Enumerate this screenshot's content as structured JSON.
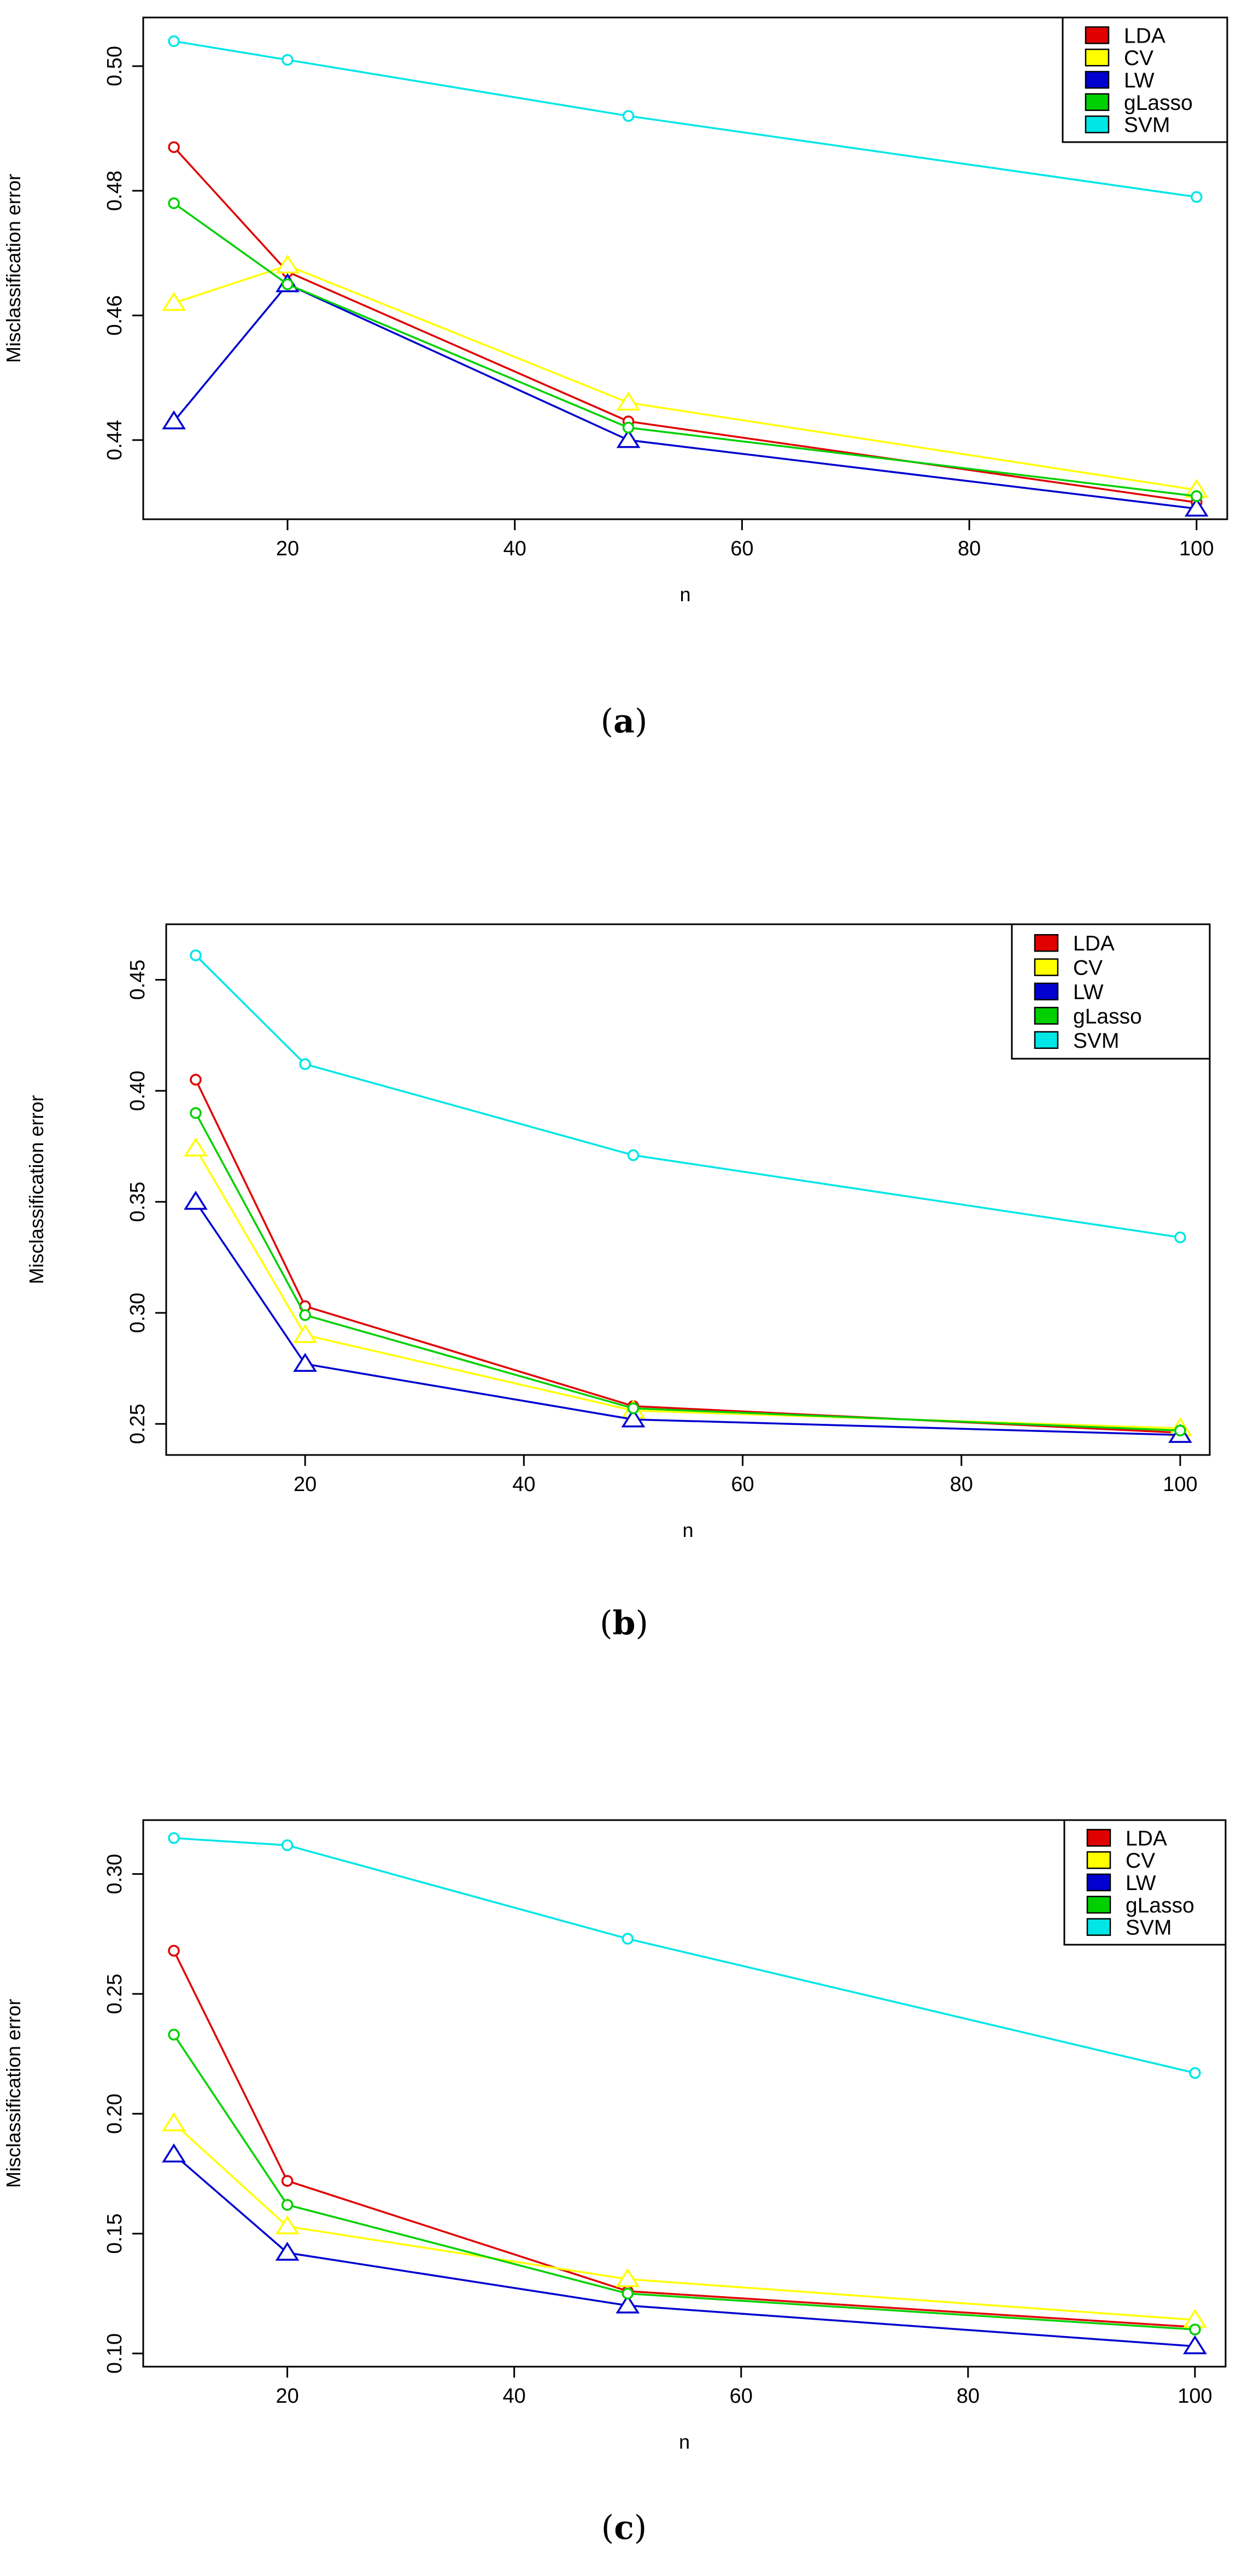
{
  "chart_data": [
    {
      "type": "line",
      "panel": "a",
      "title": "",
      "xlabel": "n",
      "ylabel": "Misclassification error",
      "x": [
        10,
        20,
        50,
        100
      ],
      "xticks": [
        "20",
        "40",
        "60",
        "80",
        "100"
      ],
      "xtick_values": [
        20,
        40,
        60,
        80,
        100
      ],
      "yticks": [
        "0.44",
        "0.46",
        "0.48",
        "0.50"
      ],
      "ytick_values": [
        0.44,
        0.46,
        0.48,
        0.5
      ],
      "xlim": [
        7.3,
        102.7
      ],
      "ylim": [
        0.4273,
        0.5078
      ],
      "legend_position": "top-right",
      "series": [
        {
          "name": "LDA",
          "color": "#e00000",
          "marker": "circle",
          "values": [
            0.487,
            0.467,
            0.443,
            0.43
          ]
        },
        {
          "name": "CV",
          "color": "#ffff00",
          "marker": "triangle",
          "values": [
            0.462,
            0.468,
            0.446,
            0.432
          ]
        },
        {
          "name": "LW",
          "color": "#0000d0",
          "marker": "triangle",
          "values": [
            0.443,
            0.465,
            0.44,
            0.429
          ]
        },
        {
          "name": "gLasso",
          "color": "#00d000",
          "marker": "circle",
          "values": [
            0.478,
            0.465,
            0.442,
            0.431
          ]
        },
        {
          "name": "SVM",
          "color": "#00e6e6",
          "marker": "circle",
          "values": [
            0.504,
            0.501,
            0.492,
            0.479
          ]
        }
      ]
    },
    {
      "type": "line",
      "panel": "b",
      "title": "",
      "xlabel": "n",
      "ylabel": "Misclassification error",
      "x": [
        10,
        20,
        50,
        100
      ],
      "xticks": [
        "20",
        "40",
        "60",
        "80",
        "100"
      ],
      "xtick_values": [
        20,
        40,
        60,
        80,
        100
      ],
      "yticks": [
        "0.25",
        "0.30",
        "0.35",
        "0.40",
        "0.45"
      ],
      "ytick_values": [
        0.25,
        0.3,
        0.35,
        0.4,
        0.45
      ],
      "xlim": [
        7.3,
        102.7
      ],
      "ylim": [
        0.236,
        0.475
      ],
      "legend_position": "top-right",
      "series": [
        {
          "name": "LDA",
          "color": "#e00000",
          "marker": "circle",
          "values": [
            0.405,
            0.303,
            0.258,
            0.246
          ]
        },
        {
          "name": "CV",
          "color": "#ffff00",
          "marker": "triangle",
          "values": [
            0.374,
            0.29,
            0.256,
            0.248
          ]
        },
        {
          "name": "LW",
          "color": "#0000d0",
          "marker": "triangle",
          "values": [
            0.35,
            0.277,
            0.252,
            0.245
          ]
        },
        {
          "name": "gLasso",
          "color": "#00d000",
          "marker": "circle",
          "values": [
            0.39,
            0.299,
            0.257,
            0.247
          ]
        },
        {
          "name": "SVM",
          "color": "#00e6e6",
          "marker": "circle",
          "values": [
            0.461,
            0.412,
            0.371,
            0.334
          ]
        }
      ]
    },
    {
      "type": "line",
      "panel": "c",
      "title": "",
      "xlabel": "n",
      "ylabel": "Misclassification error",
      "x": [
        10,
        20,
        50,
        100
      ],
      "xticks": [
        "20",
        "40",
        "60",
        "80",
        "100"
      ],
      "xtick_values": [
        20,
        40,
        60,
        80,
        100
      ],
      "yticks": [
        "0.10",
        "0.15",
        "0.20",
        "0.25",
        "0.30"
      ],
      "ytick_values": [
        0.1,
        0.15,
        0.2,
        0.25,
        0.3
      ],
      "xlim": [
        7.3,
        102.7
      ],
      "ylim": [
        0.0945,
        0.3225
      ],
      "legend_position": "top-right",
      "series": [
        {
          "name": "LDA",
          "color": "#e00000",
          "marker": "circle",
          "values": [
            0.268,
            0.172,
            0.126,
            0.111
          ]
        },
        {
          "name": "CV",
          "color": "#ffff00",
          "marker": "triangle",
          "values": [
            0.196,
            0.153,
            0.131,
            0.114
          ]
        },
        {
          "name": "LW",
          "color": "#0000d0",
          "marker": "triangle",
          "values": [
            0.183,
            0.142,
            0.12,
            0.103
          ]
        },
        {
          "name": "gLasso",
          "color": "#00d000",
          "marker": "circle",
          "values": [
            0.233,
            0.162,
            0.125,
            0.11
          ]
        },
        {
          "name": "SVM",
          "color": "#00e6e6",
          "marker": "circle",
          "values": [
            0.315,
            0.312,
            0.273,
            0.217
          ]
        }
      ]
    }
  ],
  "captions": [
    {
      "open": "(",
      "label": "a",
      "close": ")"
    },
    {
      "open": "(",
      "label": "b",
      "close": ")"
    },
    {
      "open": "(",
      "label": "c",
      "close": ")"
    }
  ]
}
